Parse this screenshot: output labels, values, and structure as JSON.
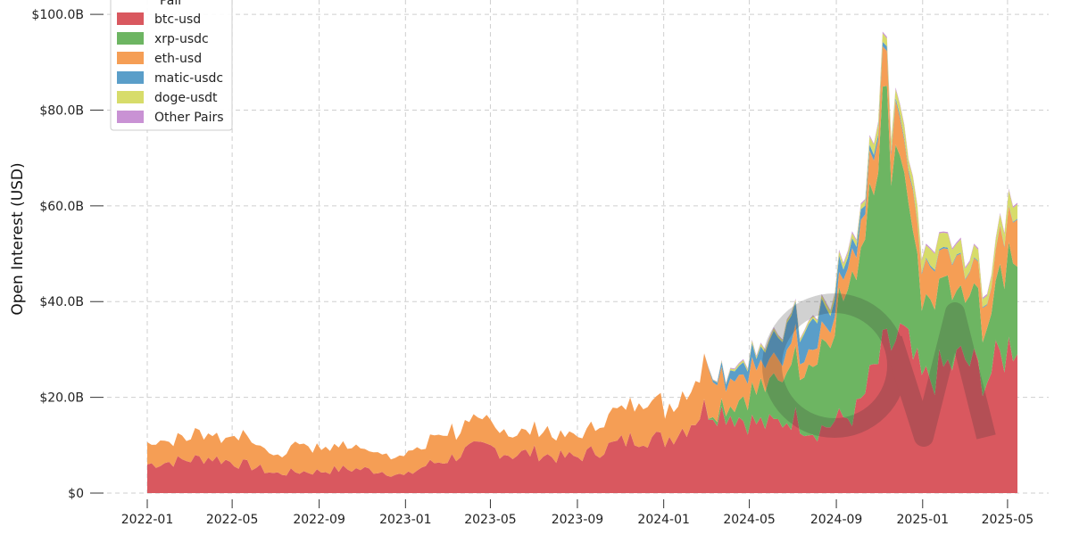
{
  "chart_data": {
    "type": "area",
    "stacked": true,
    "ylabel": "Open Interest (USD)",
    "xlabel": "",
    "ylim": [
      0,
      103000000000
    ],
    "grid": true,
    "legend": {
      "title": "Pair",
      "placement": "top-left",
      "entries": [
        "btc-usd",
        "xrp-usdc",
        "eth-usd",
        "matic-usdc",
        "doge-usdt",
        "Other Pairs"
      ]
    },
    "x_ticks": [
      "2022-01",
      "2022-05",
      "2022-09",
      "2023-01",
      "2023-05",
      "2023-09",
      "2024-01",
      "2024-05",
      "2024-09",
      "2025-01",
      "2025-05"
    ],
    "y_ticks": [
      {
        "value": 0,
        "label": "$0"
      },
      {
        "value": 20000000000,
        "label": "$20.0B"
      },
      {
        "value": 40000000000,
        "label": "$40.0B"
      },
      {
        "value": 60000000000,
        "label": "$60.0B"
      },
      {
        "value": 80000000000,
        "label": "$80.0B"
      },
      {
        "value": 100000000000,
        "label": "$100.0B"
      }
    ],
    "x": [
      "2022-01-01",
      "2022-02-01",
      "2022-03-01",
      "2022-04-01",
      "2022-05-01",
      "2022-06-01",
      "2022-07-01",
      "2022-08-01",
      "2022-09-01",
      "2022-10-01",
      "2022-11-01",
      "2022-12-01",
      "2023-01-01",
      "2023-02-01",
      "2023-03-01",
      "2023-04-01",
      "2023-05-01",
      "2023-06-01",
      "2023-07-01",
      "2023-08-01",
      "2023-09-01",
      "2023-10-01",
      "2023-11-01",
      "2023-12-01",
      "2024-01-01",
      "2024-02-01",
      "2024-03-01",
      "2024-04-01",
      "2024-05-01",
      "2024-06-01",
      "2024-07-01",
      "2024-08-01",
      "2024-09-01",
      "2024-10-01",
      "2024-11-01",
      "2024-12-01",
      "2025-01-01",
      "2025-02-01",
      "2025-03-01",
      "2025-04-01",
      "2025-05-15"
    ],
    "series": [
      {
        "name": "btc-usd",
        "color": "#d9585f",
        "values": [
          6.0,
          6.5,
          7.0,
          7.5,
          6.5,
          5.5,
          4.0,
          4.5,
          4.5,
          5.0,
          5.0,
          4.5,
          3.5,
          6.0,
          7.0,
          9.0,
          9.5,
          8.0,
          8.5,
          7.5,
          7.5,
          9.0,
          10.5,
          12.0,
          11.0,
          14.0,
          18.0,
          17.0,
          15.0,
          14.0,
          16.0,
          13.0,
          15.0,
          17.0,
          28.0,
          33.0,
          23.0,
          26.0,
          28.0,
          24.0,
          33.0
        ]
      },
      {
        "name": "xrp-usdc",
        "color": "#6db562",
        "values": [
          0,
          0,
          0,
          0,
          0,
          0,
          0,
          0,
          0,
          0,
          0,
          0,
          0,
          0,
          0,
          0,
          0,
          0,
          0,
          0,
          0,
          0,
          0,
          0,
          0,
          0,
          0,
          2.0,
          6.0,
          8.0,
          12.0,
          16.0,
          22.0,
          30.0,
          48.0,
          38.0,
          14.0,
          16.0,
          14.0,
          12.0,
          20.0
        ]
      },
      {
        "name": "eth-usd",
        "color": "#f59e55",
        "values": [
          4.5,
          4.5,
          5.0,
          5.0,
          5.5,
          5.0,
          4.0,
          5.5,
          5.5,
          5.0,
          4.5,
          4.5,
          4.0,
          4.5,
          5.5,
          5.5,
          5.0,
          5.0,
          5.0,
          5.0,
          5.0,
          5.5,
          6.5,
          8.5,
          7.0,
          7.0,
          10.0,
          6.0,
          5.5,
          4.0,
          4.0,
          3.0,
          3.5,
          5.0,
          8.5,
          7.5,
          7.0,
          7.0,
          6.0,
          6.0,
          10.0
        ]
      },
      {
        "name": "matic-usdc",
        "color": "#5a9ec9",
        "values": [
          0,
          0,
          0,
          0,
          0,
          0,
          0,
          0,
          0,
          0,
          0,
          0,
          0,
          0,
          0,
          0,
          0,
          0,
          0,
          0,
          0,
          0,
          0,
          0,
          0,
          0,
          0,
          1.5,
          2.5,
          4.0,
          5.0,
          6.0,
          3.0,
          2.0,
          1.0,
          0.5,
          0.3,
          0.3,
          0.2,
          0.2,
          0.2
        ]
      },
      {
        "name": "doge-usdt",
        "color": "#d7dc6a",
        "values": [
          0,
          0,
          0,
          0,
          0,
          0,
          0,
          0,
          0,
          0,
          0,
          0,
          0,
          0,
          0,
          0,
          0,
          0,
          0,
          0,
          0,
          0,
          0,
          0,
          0,
          0,
          0,
          0.3,
          0.5,
          0.5,
          0.5,
          0.5,
          1.0,
          1.0,
          2.0,
          2.0,
          3.0,
          3.0,
          2.5,
          2.0,
          3.0
        ]
      },
      {
        "name": "Other Pairs",
        "color": "#c992d4",
        "values": [
          0,
          0,
          0,
          0,
          0,
          0,
          0,
          0,
          0,
          0,
          0,
          0,
          0,
          0,
          0,
          0,
          0,
          0,
          0,
          0,
          0,
          0,
          0,
          0,
          0,
          0,
          0,
          0.2,
          0.2,
          0.2,
          0.2,
          0.2,
          0.3,
          0.3,
          0.3,
          0.3,
          0.3,
          0.3,
          0.3,
          0.3,
          0.3
        ]
      }
    ],
    "values_unit": "billions USD"
  }
}
